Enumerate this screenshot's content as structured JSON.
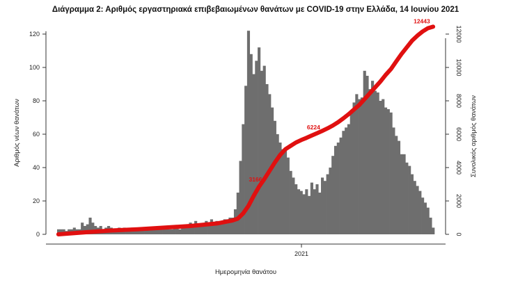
{
  "chart_data": {
    "type": "bar",
    "title": "Διάγραμμα 2: Αριθμός εργαστηριακά επιβεβαιωμένων θανάτων με COVID-19 στην Ελλάδα, 14 Ιουνίου 2021",
    "xlabel": "Ημερομηνία θανάτου",
    "ylabel": "Αριθμός νέων θανάτων",
    "y2label": "Συνολικός αριθμός θανάτων",
    "x_ticks": [
      "2021"
    ],
    "ylim": [
      0,
      125
    ],
    "yticks": [
      0,
      20,
      40,
      60,
      80,
      100,
      120
    ],
    "y2lim": [
      0,
      12500
    ],
    "y2ticks": [
      0,
      2000,
      4000,
      6000,
      8000,
      10000,
      12000
    ],
    "grid": false,
    "series": [
      {
        "type": "bar",
        "color": "#6e6e6e",
        "axis": "left",
        "values": [
          3,
          3,
          3,
          2,
          3,
          3,
          4,
          3,
          3,
          7,
          5,
          6,
          10,
          7,
          5,
          4,
          5,
          3,
          4,
          5,
          4,
          3,
          3,
          4,
          3,
          4,
          3,
          3,
          4,
          3,
          3,
          4,
          4,
          3,
          3,
          3,
          4,
          3,
          3,
          4,
          3,
          4,
          3,
          3,
          4,
          5,
          3,
          5,
          4,
          4,
          7,
          5,
          8,
          5,
          5,
          6,
          8,
          7,
          9,
          7,
          8,
          7,
          8,
          9,
          9,
          10,
          10,
          15,
          25,
          44,
          66,
          89,
          122,
          108,
          96,
          104,
          112,
          98,
          101,
          90,
          84,
          76,
          68,
          60,
          55,
          51,
          51,
          46,
          38,
          34,
          30,
          27,
          26,
          24,
          27,
          23,
          31,
          27,
          30,
          25,
          34,
          32,
          36,
          40,
          47,
          53,
          55,
          58,
          62,
          64,
          66,
          74,
          79,
          84,
          81,
          82,
          98,
          95,
          87,
          92,
          86,
          85,
          80,
          81,
          76,
          75,
          73,
          64,
          59,
          56,
          48,
          48,
          43,
          41,
          36,
          32,
          29,
          26,
          22,
          19,
          16,
          10,
          4
        ]
      },
      {
        "type": "line",
        "color": "#e01010",
        "axis": "right",
        "x": [
          0,
          10,
          20,
          30,
          40,
          50,
          60,
          66,
          68,
          70,
          72,
          74,
          76,
          78,
          80,
          82,
          84,
          86,
          88,
          90,
          92,
          94,
          96,
          98,
          100,
          102,
          104,
          106,
          108,
          110,
          112,
          114,
          116,
          118,
          120,
          122,
          124,
          126,
          128,
          130,
          132,
          134,
          136,
          138,
          140,
          142
        ],
        "values": [
          0,
          120,
          230,
          300,
          400,
          500,
          650,
          830,
          940,
          1250,
          1700,
          2300,
          2850,
          3300,
          3800,
          4300,
          4750,
          5100,
          5300,
          5500,
          5650,
          5780,
          5920,
          6060,
          6200,
          6350,
          6520,
          6720,
          6950,
          7200,
          7480,
          7750,
          8100,
          8450,
          8800,
          9150,
          9550,
          9900,
          10350,
          10800,
          11200,
          11600,
          11900,
          12150,
          12350,
          12443
        ]
      }
    ],
    "annotations": [
      "3166",
      "6224",
      "12443"
    ]
  }
}
